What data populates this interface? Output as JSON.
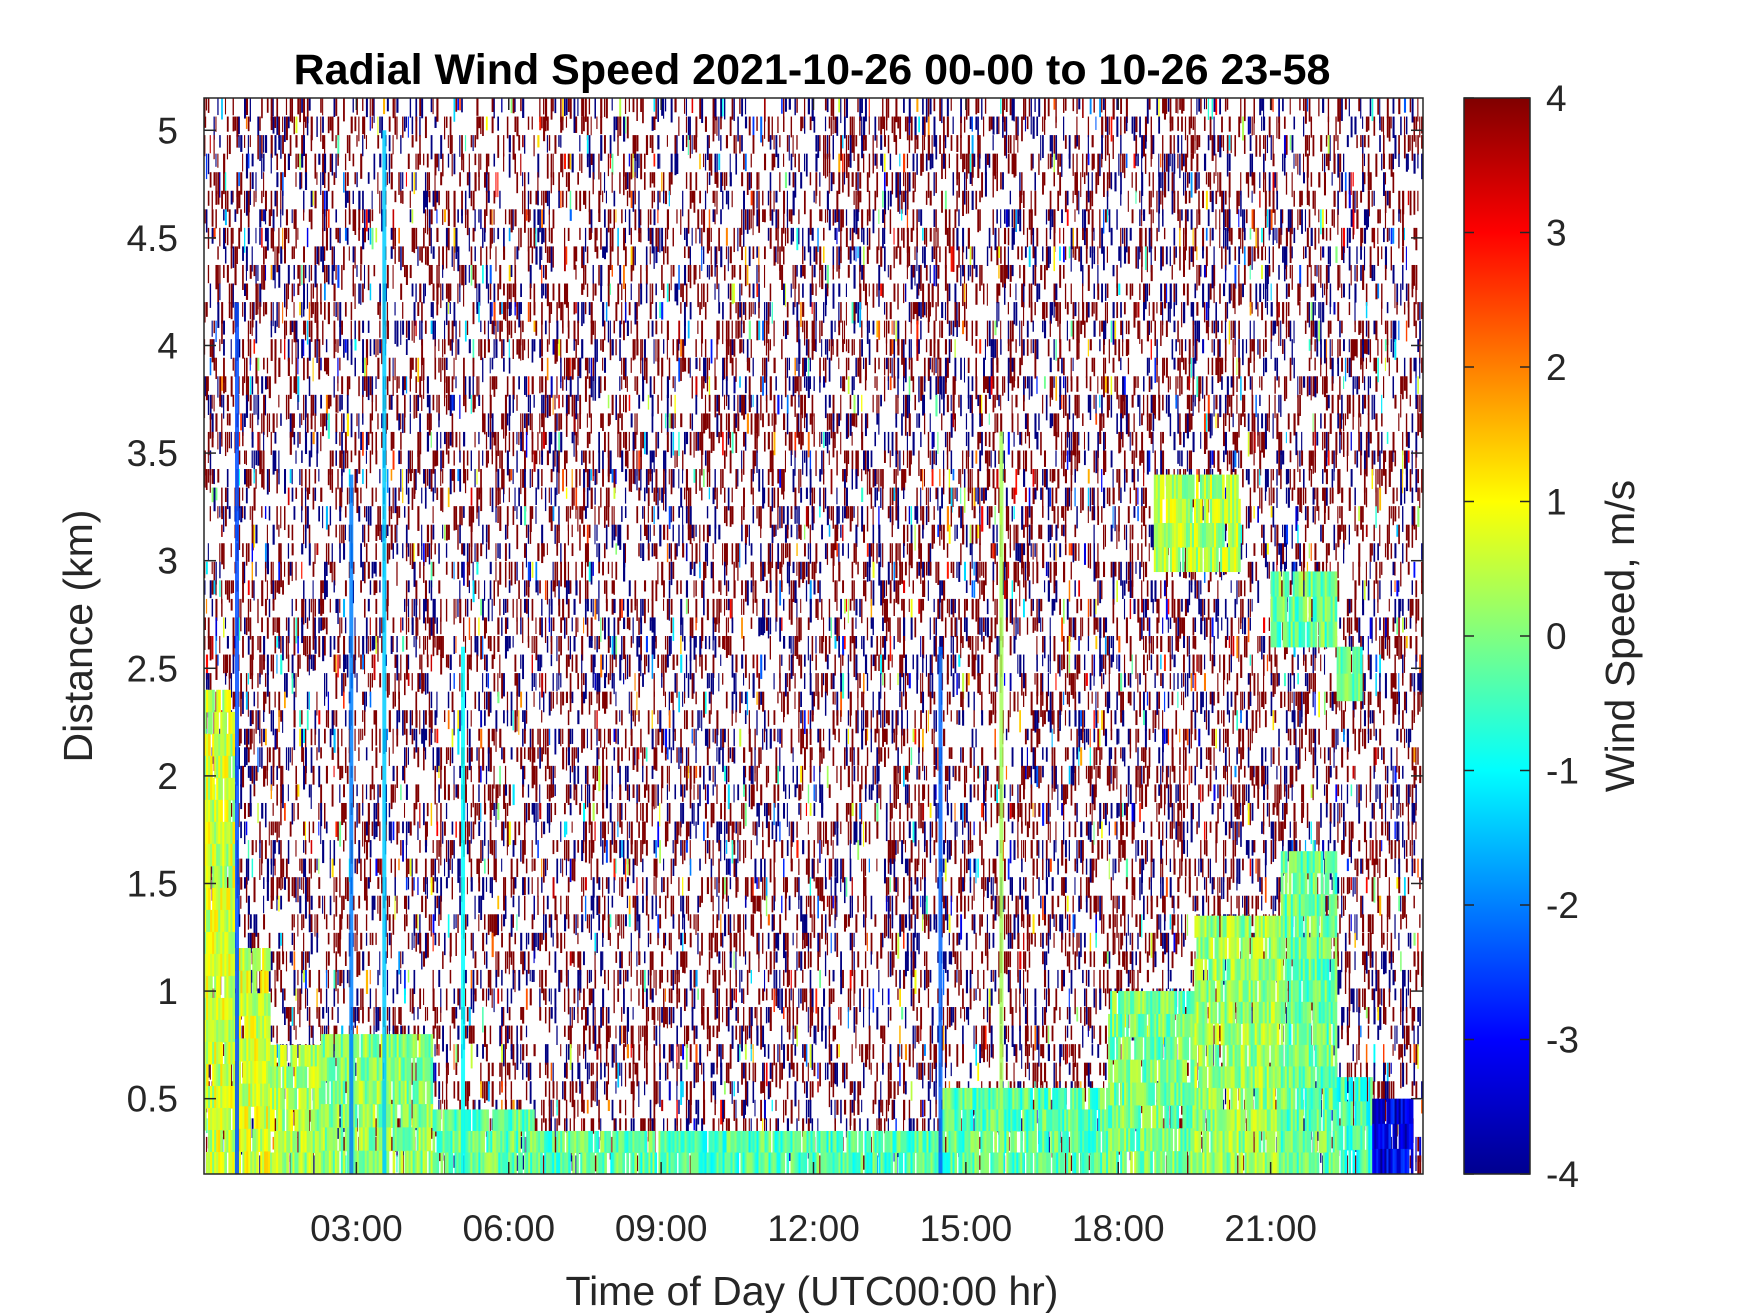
{
  "chart_data": {
    "type": "heatmap",
    "title": "Radial Wind Speed 2021-10-26 00-00 to 10-26 23-58",
    "xlabel": "Time of Day (UTC00:00 hr)",
    "ylabel": "Distance (km)",
    "colorbar_label": "Wind Speed, m/s",
    "colormap": "jet",
    "xlim": [
      0,
      24
    ],
    "ylim": [
      0.15,
      5.15
    ],
    "clim": [
      -4,
      4
    ],
    "x_ticks": [
      {
        "value": 3,
        "label": "03:00"
      },
      {
        "value": 6,
        "label": "06:00"
      },
      {
        "value": 9,
        "label": "09:00"
      },
      {
        "value": 12,
        "label": "12:00"
      },
      {
        "value": 15,
        "label": "15:00"
      },
      {
        "value": 18,
        "label": "18:00"
      },
      {
        "value": 21,
        "label": "21:00"
      }
    ],
    "y_ticks": [
      {
        "value": 0.5,
        "label": "0.5"
      },
      {
        "value": 1,
        "label": "1"
      },
      {
        "value": 1.5,
        "label": "1.5"
      },
      {
        "value": 2,
        "label": "2"
      },
      {
        "value": 2.5,
        "label": "2.5"
      },
      {
        "value": 3,
        "label": "3"
      },
      {
        "value": 3.5,
        "label": "3.5"
      },
      {
        "value": 4,
        "label": "4"
      },
      {
        "value": 4.5,
        "label": "4.5"
      },
      {
        "value": 5,
        "label": "5"
      }
    ],
    "colorbar_ticks": [
      {
        "value": 4,
        "label": "4"
      },
      {
        "value": 3,
        "label": "3"
      },
      {
        "value": 2,
        "label": "2"
      },
      {
        "value": 1,
        "label": "1"
      },
      {
        "value": 0,
        "label": "0"
      },
      {
        "value": -1,
        "label": "-1"
      },
      {
        "value": -2,
        "label": "-2"
      },
      {
        "value": -3,
        "label": "-3"
      },
      {
        "value": -4,
        "label": "-4"
      }
    ],
    "background_noise": {
      "dominant_values": [
        4,
        -4
      ],
      "note_speed_range": [
        -4,
        4
      ]
    },
    "coherent_regions": [
      {
        "x": [
          0,
          0.6
        ],
        "y": [
          0.15,
          2.4
        ],
        "speed": 0.6
      },
      {
        "x": [
          0.6,
          1.3
        ],
        "y": [
          0.15,
          1.2
        ],
        "speed": 0.7
      },
      {
        "x": [
          1.3,
          2.3
        ],
        "y": [
          0.15,
          0.75
        ],
        "speed": 0.3
      },
      {
        "x": [
          2.3,
          4.5
        ],
        "y": [
          0.15,
          0.8
        ],
        "speed": 0.1
      },
      {
        "x": [
          4.5,
          6.5
        ],
        "y": [
          0.15,
          0.45
        ],
        "speed": -0.2
      },
      {
        "x": [
          6.5,
          9.5
        ],
        "y": [
          0.15,
          0.35
        ],
        "speed": -0.3
      },
      {
        "x": [
          9.5,
          14.5
        ],
        "y": [
          0.15,
          0.35
        ],
        "speed": -0.4
      },
      {
        "x": [
          14.5,
          17.8
        ],
        "y": [
          0.15,
          0.55
        ],
        "speed": -0.3
      },
      {
        "x": [
          17.8,
          19.5
        ],
        "y": [
          0.15,
          1.0
        ],
        "speed": -0.1
      },
      {
        "x": [
          19.5,
          21.2
        ],
        "y": [
          0.15,
          1.35
        ],
        "speed": 0.2
      },
      {
        "x": [
          21.2,
          22.3
        ],
        "y": [
          0.15,
          1.65
        ],
        "speed": -0.2
      },
      {
        "x": [
          22.3,
          23.0
        ],
        "y": [
          0.15,
          0.6
        ],
        "speed": -0.5
      },
      {
        "x": [
          23.0,
          23.8
        ],
        "y": [
          0.15,
          0.5
        ],
        "speed": -3.2
      },
      {
        "x": [
          18.7,
          20.4
        ],
        "y": [
          2.95,
          3.4
        ],
        "speed": 0.4
      },
      {
        "x": [
          21.0,
          22.3
        ],
        "y": [
          2.6,
          2.95
        ],
        "speed": -0.2
      },
      {
        "x": [
          22.3,
          22.8
        ],
        "y": [
          2.35,
          2.6
        ],
        "speed": -0.2
      }
    ],
    "vertical_streaks": [
      {
        "x": 3.55,
        "y_top": 5.0,
        "speed": -1.4
      },
      {
        "x": 2.9,
        "y_top": 3.4,
        "speed": -2.0
      },
      {
        "x": 5.1,
        "y_top": 2.6,
        "speed": -1.0
      },
      {
        "x": 14.5,
        "y_top": 2.6,
        "speed": -2.2
      },
      {
        "x": 15.7,
        "y_top": 3.6,
        "speed": 0.3
      },
      {
        "x": 0.65,
        "y_top": 4.2,
        "speed": -2.4
      }
    ]
  }
}
